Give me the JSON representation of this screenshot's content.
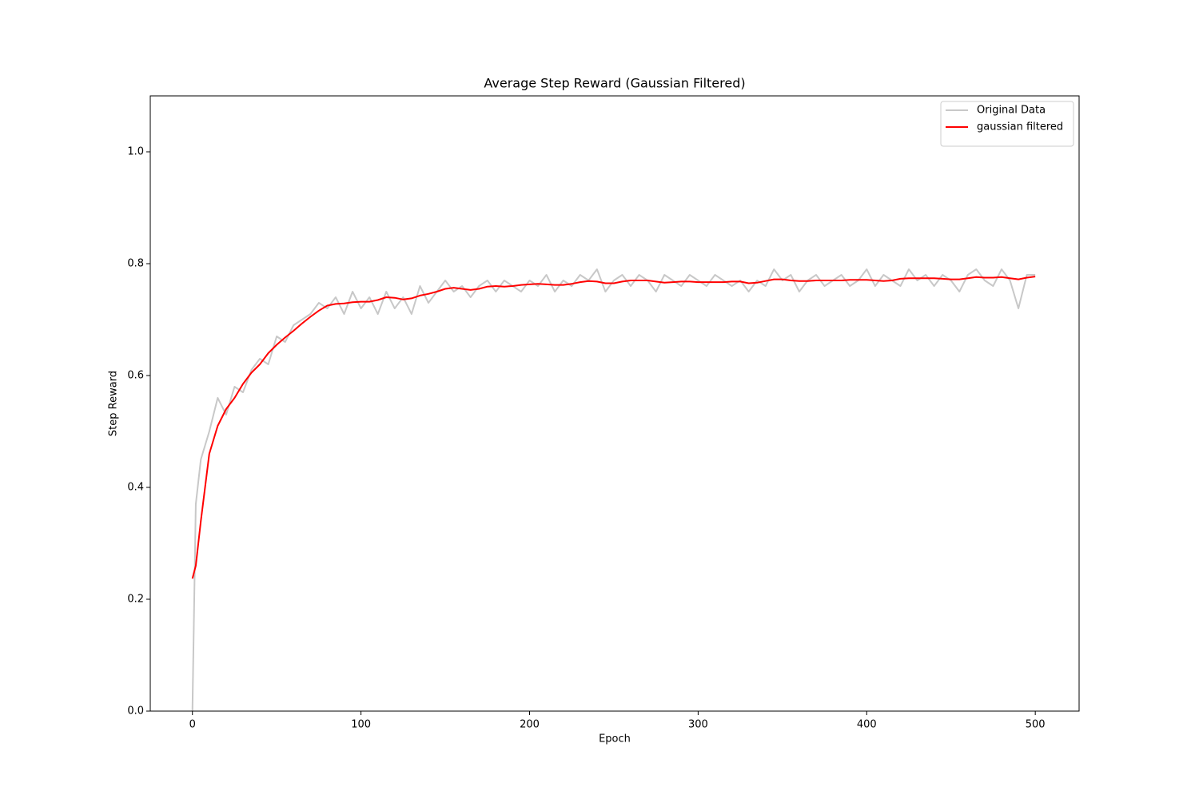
{
  "chart_data": {
    "type": "line",
    "title": "Average Step Reward (Gaussian Filtered)",
    "x_label": "Epoch",
    "y_label": "Step Reward",
    "xlim": [
      -25,
      526
    ],
    "ylim": [
      0,
      1.1
    ],
    "xticks": [
      0,
      100,
      200,
      300,
      400,
      500
    ],
    "yticks": [
      {
        "value": 0,
        "label": "0.0"
      },
      {
        "value": 0.2,
        "label": "0.2"
      },
      {
        "value": 0.4,
        "label": "0.4"
      },
      {
        "value": 0.6,
        "label": "0.6"
      },
      {
        "value": 0.8,
        "label": "0.8"
      },
      {
        "value": 1.0,
        "label": "1.0"
      }
    ],
    "legend": "upper right",
    "x": [
      0,
      2,
      5,
      10,
      15,
      20,
      25,
      30,
      35,
      40,
      45,
      50,
      55,
      60,
      65,
      70,
      75,
      80,
      85,
      90,
      95,
      100,
      105,
      110,
      115,
      120,
      125,
      130,
      135,
      140,
      145,
      150,
      155,
      160,
      165,
      170,
      175,
      180,
      185,
      190,
      195,
      200,
      205,
      210,
      215,
      220,
      225,
      230,
      235,
      240,
      245,
      250,
      255,
      260,
      265,
      270,
      275,
      280,
      285,
      290,
      295,
      300,
      305,
      310,
      315,
      320,
      325,
      330,
      335,
      340,
      345,
      350,
      355,
      360,
      365,
      370,
      375,
      380,
      385,
      390,
      395,
      400,
      405,
      410,
      415,
      420,
      425,
      430,
      435,
      440,
      445,
      450,
      455,
      460,
      465,
      470,
      475,
      480,
      485,
      490,
      495,
      500
    ],
    "series": [
      {
        "name": "Original Data",
        "color": "#c8c8c8",
        "values": [
          0.0,
          0.37,
          0.45,
          0.5,
          0.56,
          0.53,
          0.58,
          0.57,
          0.61,
          0.63,
          0.62,
          0.67,
          0.66,
          0.69,
          0.7,
          0.71,
          0.73,
          0.72,
          0.74,
          0.71,
          0.75,
          0.72,
          0.74,
          0.71,
          0.75,
          0.72,
          0.74,
          0.71,
          0.76,
          0.73,
          0.75,
          0.77,
          0.75,
          0.76,
          0.74,
          0.76,
          0.77,
          0.75,
          0.77,
          0.76,
          0.75,
          0.77,
          0.76,
          0.78,
          0.75,
          0.77,
          0.76,
          0.78,
          0.77,
          0.79,
          0.75,
          0.77,
          0.78,
          0.76,
          0.78,
          0.77,
          0.75,
          0.78,
          0.77,
          0.76,
          0.78,
          0.77,
          0.76,
          0.78,
          0.77,
          0.76,
          0.77,
          0.75,
          0.77,
          0.76,
          0.79,
          0.77,
          0.78,
          0.75,
          0.77,
          0.78,
          0.76,
          0.77,
          0.78,
          0.76,
          0.77,
          0.79,
          0.76,
          0.78,
          0.77,
          0.76,
          0.79,
          0.77,
          0.78,
          0.76,
          0.78,
          0.77,
          0.75,
          0.78,
          0.79,
          0.77,
          0.76,
          0.79,
          0.77,
          0.72,
          0.78,
          0.78
        ]
      },
      {
        "name": "gaussian filtered",
        "color": "#ff0000",
        "values": [
          0.237,
          0.26,
          0.34,
          0.46,
          0.51,
          0.54,
          0.56,
          0.585,
          0.605,
          0.62,
          0.64,
          0.655,
          0.668,
          0.68,
          0.693,
          0.705,
          0.716,
          0.725,
          0.728,
          0.729,
          0.731,
          0.732,
          0.732,
          0.735,
          0.74,
          0.739,
          0.736,
          0.738,
          0.743,
          0.746,
          0.75,
          0.755,
          0.757,
          0.755,
          0.753,
          0.755,
          0.759,
          0.76,
          0.759,
          0.76,
          0.762,
          0.763,
          0.764,
          0.763,
          0.762,
          0.762,
          0.764,
          0.767,
          0.769,
          0.768,
          0.765,
          0.765,
          0.768,
          0.77,
          0.77,
          0.77,
          0.768,
          0.766,
          0.767,
          0.768,
          0.768,
          0.767,
          0.767,
          0.767,
          0.767,
          0.768,
          0.768,
          0.765,
          0.766,
          0.769,
          0.772,
          0.772,
          0.77,
          0.769,
          0.769,
          0.77,
          0.77,
          0.77,
          0.77,
          0.771,
          0.771,
          0.771,
          0.77,
          0.769,
          0.77,
          0.773,
          0.774,
          0.774,
          0.774,
          0.774,
          0.773,
          0.772,
          0.772,
          0.774,
          0.776,
          0.775,
          0.775,
          0.776,
          0.774,
          0.772,
          0.775,
          0.777
        ]
      }
    ]
  }
}
